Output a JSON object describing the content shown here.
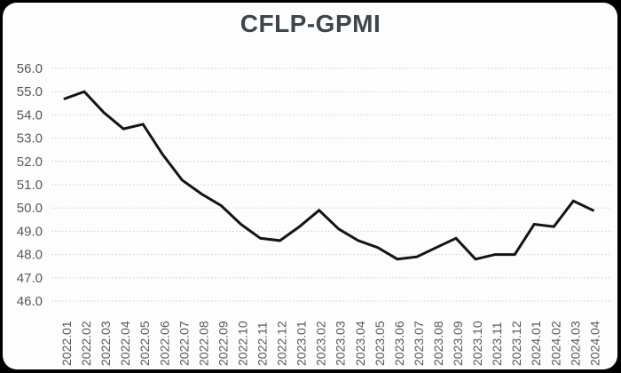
{
  "page": {
    "outer_background": "#000000",
    "card_background": "#fdfdfd"
  },
  "chart_data": {
    "type": "line",
    "title": "CFLP-GPMI",
    "categories": [
      "2022.01",
      "2022.02",
      "2022.03",
      "2022.04",
      "2022.05",
      "2022.06",
      "2022.07",
      "2022.08",
      "2022.09",
      "2022.10",
      "2022.11",
      "2022.12",
      "2023.01",
      "2023.02",
      "2023.03",
      "2023.04",
      "2023.05",
      "2023.06",
      "2023.07",
      "2023.08",
      "2023.09",
      "2023.10",
      "2023.11",
      "2023.12",
      "2024.01",
      "2024.02",
      "2024.03",
      "2024.04"
    ],
    "series": [
      {
        "name": "CFLP-GPMI",
        "values": [
          54.7,
          55.0,
          54.1,
          53.4,
          53.6,
          52.3,
          51.2,
          50.6,
          50.1,
          49.3,
          48.7,
          48.6,
          49.2,
          49.9,
          49.1,
          48.6,
          48.3,
          47.8,
          47.9,
          48.3,
          48.7,
          47.8,
          48.0,
          48.0,
          49.3,
          49.2,
          50.3,
          49.9
        ]
      }
    ],
    "ylim": [
      46.0,
      56.0
    ],
    "ytick_step": 1.0,
    "ytick_labels": [
      "56.0",
      "55.0",
      "54.0",
      "53.0",
      "52.0",
      "51.0",
      "50.0",
      "49.0",
      "48.0",
      "47.0",
      "46.0"
    ],
    "xlabel": "",
    "ylabel": "",
    "legend": "none",
    "grid": "horizontal dotted gridlines at each 1.0",
    "x_tick_rotation_degrees": -90,
    "colors": {
      "line": "#141414",
      "gridline": "#c9ced3",
      "title": "#3e454b",
      "tick_label": "#54585c"
    }
  }
}
